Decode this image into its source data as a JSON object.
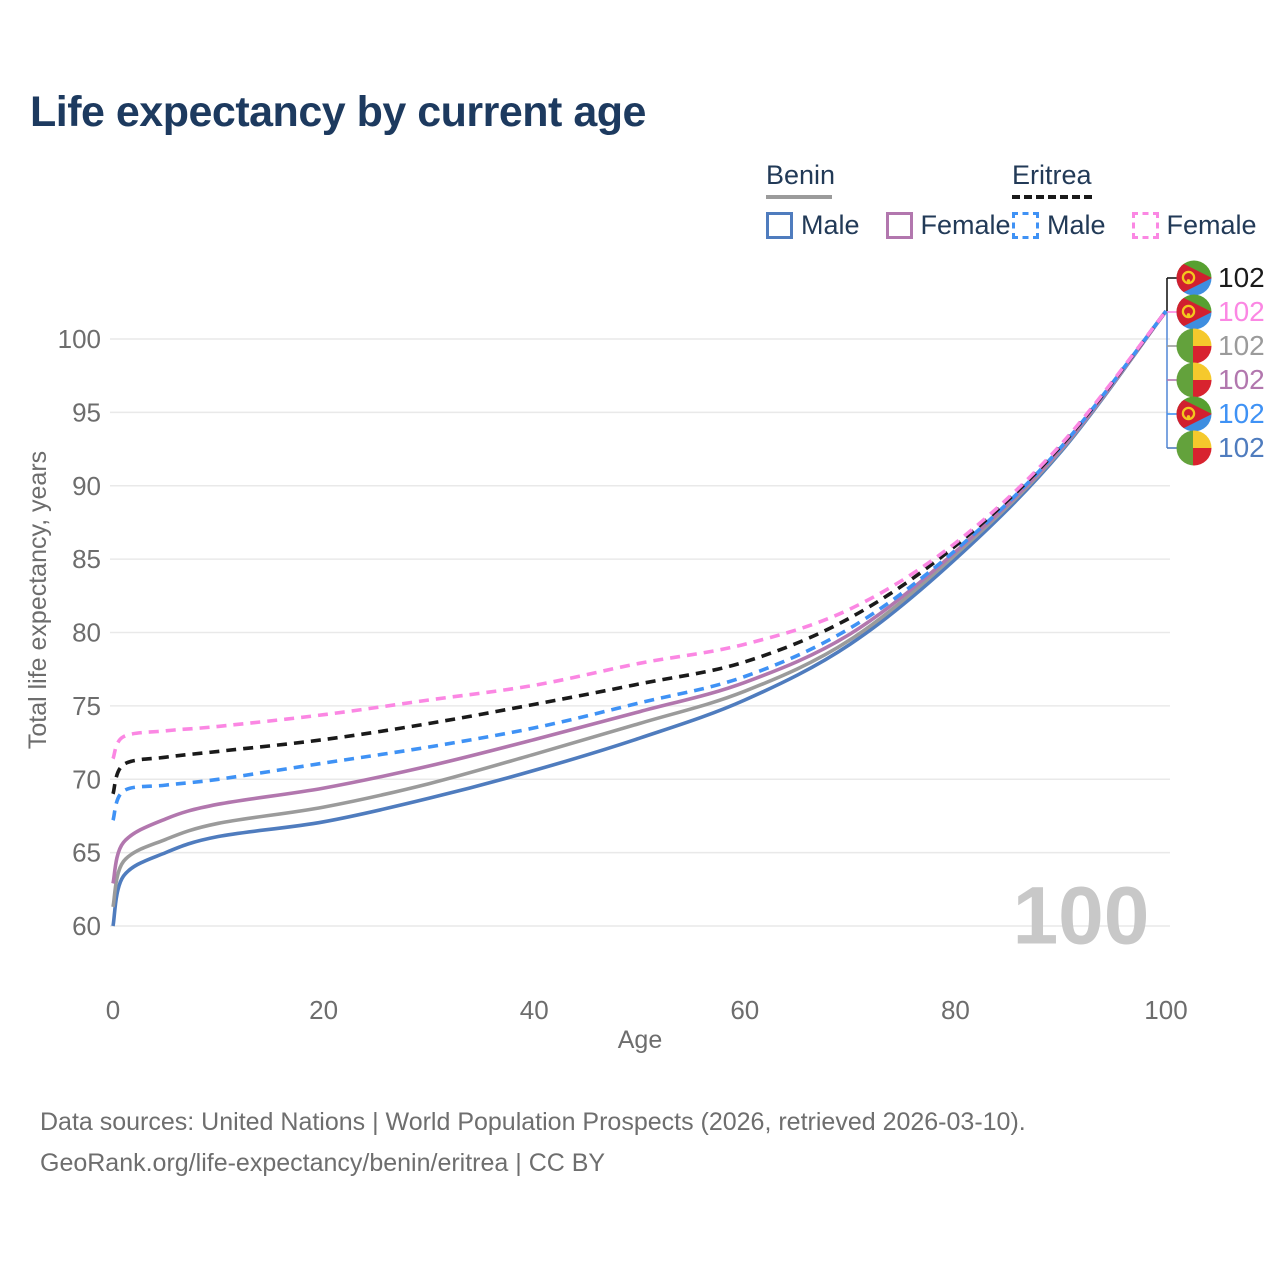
{
  "title": "Life expectancy by current age",
  "legend": {
    "groups": [
      {
        "country": "Benin",
        "line_style": "solid",
        "line_color": "#9b9b9b",
        "entries": [
          {
            "label": "Male",
            "color": "#4f7cbe"
          },
          {
            "label": "Female",
            "color": "#b277ae"
          }
        ]
      },
      {
        "country": "Eritrea",
        "line_style": "dashed",
        "line_color": "#1a1a1a",
        "entries": [
          {
            "label": "Male",
            "color": "#3f92f5"
          },
          {
            "label": "Female",
            "color": "#fb87e3"
          }
        ]
      }
    ]
  },
  "chart_data": {
    "type": "line",
    "title": "Life expectancy by current age",
    "xlabel": "Age",
    "ylabel": "Total life expectancy, years",
    "xlim": [
      0,
      100
    ],
    "ylim": [
      58,
      103
    ],
    "x_ticks": [
      0,
      20,
      40,
      60,
      80,
      100
    ],
    "y_ticks": [
      60,
      65,
      70,
      75,
      80,
      85,
      90,
      95,
      100
    ],
    "grid": "horizontal",
    "legend_position": "top-right",
    "watermark": "100",
    "x": [
      0,
      1,
      5,
      10,
      20,
      30,
      40,
      50,
      60,
      70,
      80,
      90,
      100
    ],
    "series": [
      {
        "name": "Benin Male",
        "country": "Benin",
        "sex": "Male",
        "style": "solid",
        "color": "#4f7cbe",
        "end_label": "102",
        "values": [
          60.0,
          63.4,
          65.0,
          66.1,
          67.1,
          68.7,
          70.6,
          72.8,
          75.4,
          79.2,
          85.0,
          92.3,
          101.9
        ]
      },
      {
        "name": "Benin Both sexes",
        "country": "Benin",
        "sex": "Both",
        "style": "solid",
        "color": "#9b9b9b",
        "end_label": "102",
        "values": [
          61.3,
          64.4,
          65.9,
          67.0,
          68.1,
          69.7,
          71.7,
          73.8,
          76.0,
          79.5,
          85.3,
          92.4,
          101.9
        ]
      },
      {
        "name": "Benin Female",
        "country": "Benin",
        "sex": "Female",
        "style": "solid",
        "color": "#b277ae",
        "end_label": "102",
        "values": [
          62.9,
          65.7,
          67.3,
          68.3,
          69.4,
          70.9,
          72.7,
          74.6,
          76.6,
          79.9,
          85.5,
          92.5,
          101.9
        ]
      },
      {
        "name": "Eritrea Male",
        "country": "Eritrea",
        "sex": "Male",
        "style": "dashed",
        "color": "#3f92f5",
        "end_label": "102",
        "values": [
          67.2,
          69.2,
          69.6,
          70.0,
          71.1,
          72.2,
          73.5,
          75.2,
          77.0,
          80.3,
          85.6,
          92.6,
          101.9
        ]
      },
      {
        "name": "Eritrea Both sexes",
        "country": "Eritrea",
        "sex": "Both",
        "style": "dashed",
        "color": "#1a1a1a",
        "end_label": "102",
        "values": [
          69.0,
          71.0,
          71.5,
          71.9,
          72.7,
          73.8,
          75.1,
          76.5,
          78.0,
          81.0,
          85.9,
          92.7,
          101.9
        ]
      },
      {
        "name": "Eritrea Female",
        "country": "Eritrea",
        "sex": "Female",
        "style": "dashed",
        "color": "#fb87e3",
        "end_label": "102",
        "values": [
          71.4,
          72.9,
          73.3,
          73.6,
          74.4,
          75.4,
          76.4,
          77.9,
          79.2,
          81.6,
          86.1,
          92.8,
          101.9
        ]
      }
    ],
    "end_label_rows": [
      {
        "flag": "eritrea",
        "label": "102",
        "color": "#1a1a1a"
      },
      {
        "flag": "eritrea",
        "label": "102",
        "color": "#fb87e3"
      },
      {
        "flag": "benin",
        "label": "102",
        "color": "#9b9b9b"
      },
      {
        "flag": "benin",
        "label": "102",
        "color": "#b277ae"
      },
      {
        "flag": "eritrea",
        "label": "102",
        "color": "#3f92f5"
      },
      {
        "flag": "benin",
        "label": "102",
        "color": "#4f7cbe"
      }
    ]
  },
  "footer": {
    "line1": "Data sources: United Nations | World Population Prospects (2026, retrieved 2026-03-10).",
    "line2": "GeoRank.org/life-expectancy/benin/eritrea | CC BY"
  },
  "colors": {
    "title": "#1d3a5f",
    "axis_text": "#6d6d6d",
    "grid": "#e9e9e9",
    "watermark": "#c8c8c8"
  }
}
